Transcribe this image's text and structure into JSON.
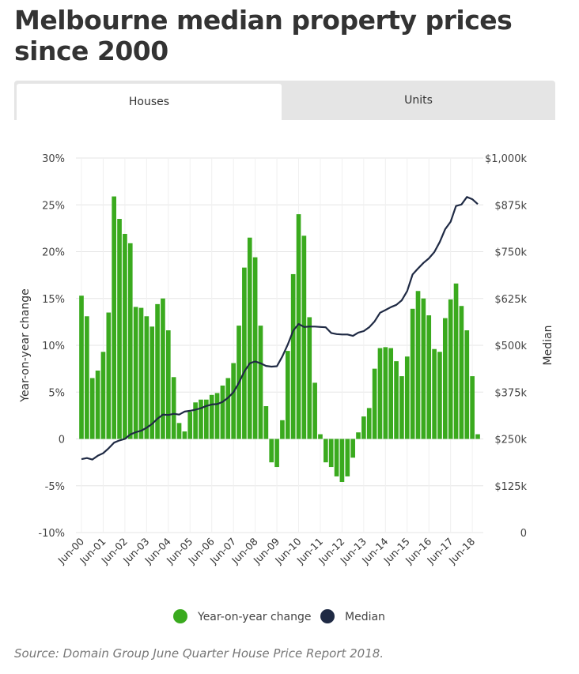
{
  "title": "Melbourne median property prices since 2000",
  "tabs": [
    {
      "label": "Houses",
      "active": true
    },
    {
      "label": "Units",
      "active": false
    }
  ],
  "source": "Source: Domain Group June Quarter House Price Report 2018.",
  "colors": {
    "bars": "#3aaa1e",
    "line": "#1f2a44",
    "grid": "#e6e6e6"
  },
  "chart_data": {
    "type": "bar",
    "title": "",
    "ylabel": "Year-on-year change",
    "y2label": "Median",
    "ylim": [
      -10,
      30
    ],
    "y2lim": [
      0,
      1000
    ],
    "y_ticks": [
      {
        "value": 30,
        "label": "30%"
      },
      {
        "value": 25,
        "label": "25%"
      },
      {
        "value": 20,
        "label": "20%"
      },
      {
        "value": 15,
        "label": "15%"
      },
      {
        "value": 10,
        "label": "10%"
      },
      {
        "value": 5,
        "label": "5%"
      },
      {
        "value": 0,
        "label": "0"
      },
      {
        "value": -5,
        "label": "-5%"
      },
      {
        "value": -10,
        "label": "-10%"
      }
    ],
    "y2_ticks": [
      {
        "value": 1000,
        "label": "$1,000k"
      },
      {
        "value": 875,
        "label": "$875k"
      },
      {
        "value": 750,
        "label": "$750k"
      },
      {
        "value": 625,
        "label": "$625k"
      },
      {
        "value": 500,
        "label": "$500k"
      },
      {
        "value": 375,
        "label": "$375k"
      },
      {
        "value": 250,
        "label": "$250k"
      },
      {
        "value": 125,
        "label": "$125k"
      },
      {
        "value": 0,
        "label": "0"
      }
    ],
    "x_tick_labels": [
      "Jun-00",
      "Jun-01",
      "Jun-02",
      "Jun-03",
      "Jun-04",
      "Jun-05",
      "Jun-06",
      "Jun-07",
      "Jun-08",
      "Jun-09",
      "Jun-10",
      "Jun-11",
      "Jun-12",
      "Jun-13",
      "Jun-14",
      "Jun-15",
      "Jun-16",
      "Jun-17",
      "Jun-18"
    ],
    "legend": {
      "position": "bottom",
      "items": [
        {
          "name": "Year-on-year change",
          "marker": "circle"
        },
        {
          "name": "Median",
          "marker": "circle"
        }
      ]
    },
    "series": [
      {
        "name": "Year-on-year change",
        "axis": "left",
        "type": "bar",
        "values": [
          15.3,
          13.1,
          6.5,
          7.3,
          9.3,
          13.5,
          25.9,
          23.5,
          21.9,
          20.9,
          14.1,
          14.0,
          13.1,
          12.0,
          14.4,
          15.0,
          11.6,
          6.6,
          1.7,
          0.8,
          2.9,
          3.9,
          4.2,
          4.2,
          4.7,
          4.9,
          5.7,
          6.5,
          8.1,
          12.1,
          18.3,
          21.5,
          19.4,
          12.1,
          3.5,
          -2.5,
          -3.0,
          2.0,
          9.4,
          17.6,
          24.0,
          21.7,
          13.0,
          6.0,
          0.5,
          -2.5,
          -3.0,
          -4.0,
          -4.6,
          -4.0,
          -2.0,
          0.7,
          2.4,
          3.3,
          7.5,
          9.7,
          9.8,
          9.7,
          8.3,
          6.7,
          8.8,
          13.9,
          15.8,
          15.0,
          13.2,
          9.6,
          9.3,
          12.9,
          14.9,
          16.6,
          14.2,
          11.6,
          6.7,
          0.5
        ]
      },
      {
        "name": "Median",
        "axis": "right",
        "type": "line",
        "values": [
          196,
          199,
          195,
          205,
          212,
          225,
          240,
          246,
          250,
          262,
          268,
          272,
          280,
          290,
          304,
          315,
          314,
          317,
          315,
          323,
          325,
          328,
          332,
          338,
          342,
          343,
          349,
          360,
          375,
          400,
          430,
          452,
          457,
          452,
          445,
          443,
          444,
          470,
          502,
          539,
          557,
          549,
          550,
          550,
          549,
          548,
          533,
          530,
          529,
          529,
          525,
          534,
          538,
          548,
          564,
          587,
          594,
          602,
          608,
          620,
          645,
          689,
          705,
          720,
          732,
          749,
          776,
          810,
          830,
          872,
          876,
          896,
          890,
          877
        ]
      }
    ]
  }
}
